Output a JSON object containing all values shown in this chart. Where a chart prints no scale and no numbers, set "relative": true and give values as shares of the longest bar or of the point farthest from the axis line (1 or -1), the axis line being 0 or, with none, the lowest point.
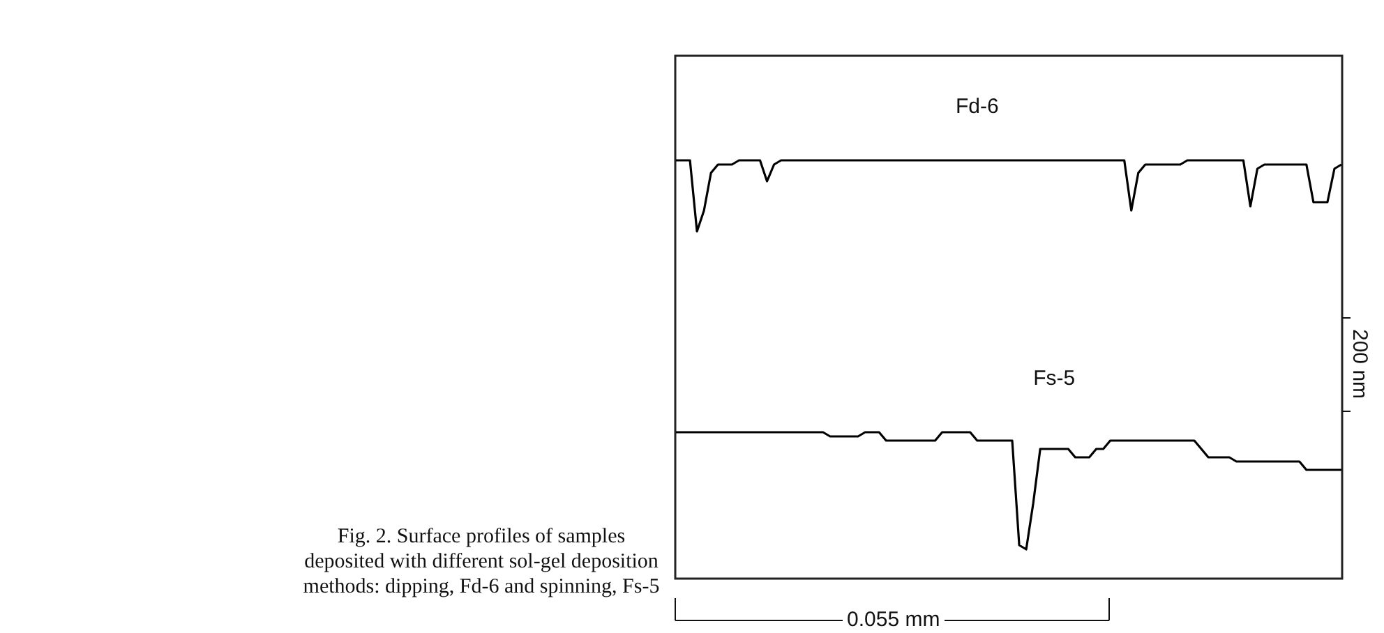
{
  "chart_data": {
    "type": "line",
    "relative": true,
    "categories": [
      null,
      null,
      null,
      null,
      null,
      null,
      null,
      null,
      null,
      null,
      null,
      null,
      null,
      null,
      null,
      null,
      null,
      null,
      null,
      null,
      null,
      null,
      null,
      null,
      null,
      null,
      null,
      null,
      null,
      null,
      null,
      null,
      null,
      null,
      null,
      null,
      null,
      null,
      null,
      null,
      null,
      null,
      null,
      null,
      null,
      null,
      null,
      null,
      null,
      null,
      null,
      null,
      null,
      null,
      null,
      null,
      null,
      null,
      null,
      null,
      null,
      null,
      null,
      null,
      null,
      null,
      null,
      null,
      null,
      null,
      null,
      null,
      null,
      null,
      null,
      null,
      null,
      null,
      null,
      null,
      null,
      null,
      null,
      null,
      null,
      null,
      null,
      null,
      null,
      null,
      null,
      null,
      null,
      null,
      null,
      null
    ],
    "series": [
      {
        "name": "Fd-6",
        "color": "#000000",
        "values": [
          1,
          1,
          1,
          0.83,
          0.88,
          0.97,
          0.99,
          0.99,
          0.99,
          1,
          1,
          1,
          1,
          0.95,
          0.99,
          1,
          1,
          1,
          1,
          1,
          1,
          1,
          1,
          1,
          1,
          1,
          1,
          1,
          1,
          1,
          1,
          1,
          1,
          1,
          1,
          1,
          1,
          1,
          1,
          1,
          1,
          1,
          1,
          1,
          1,
          1,
          1,
          1,
          1,
          1,
          1,
          1,
          1,
          1,
          1,
          1,
          1,
          1,
          1,
          1,
          1,
          1,
          1,
          1,
          1,
          0.88,
          0.97,
          0.99,
          0.99,
          0.99,
          0.99,
          0.99,
          0.99,
          1,
          1,
          1,
          1,
          1,
          1,
          1,
          1,
          1,
          0.89,
          0.98,
          0.99,
          0.99,
          0.99,
          0.99,
          0.99,
          0.99,
          0.99,
          0.9,
          0.9,
          0.9,
          0.98,
          0.99
        ]
      },
      {
        "name": "Fs-5",
        "color": "#000000",
        "values": [
          0.35,
          0.35,
          0.35,
          0.35,
          0.35,
          0.35,
          0.35,
          0.35,
          0.35,
          0.35,
          0.35,
          0.35,
          0.35,
          0.35,
          0.35,
          0.35,
          0.35,
          0.35,
          0.35,
          0.35,
          0.35,
          0.35,
          0.34,
          0.34,
          0.34,
          0.34,
          0.34,
          0.35,
          0.35,
          0.35,
          0.33,
          0.33,
          0.33,
          0.33,
          0.33,
          0.33,
          0.33,
          0.33,
          0.35,
          0.35,
          0.35,
          0.35,
          0.35,
          0.33,
          0.33,
          0.33,
          0.33,
          0.33,
          0.33,
          0.08,
          0.07,
          0.18,
          0.31,
          0.31,
          0.31,
          0.31,
          0.31,
          0.29,
          0.29,
          0.29,
          0.31,
          0.31,
          0.33,
          0.33,
          0.33,
          0.33,
          0.33,
          0.33,
          0.33,
          0.33,
          0.33,
          0.33,
          0.33,
          0.33,
          0.33,
          0.31,
          0.29,
          0.29,
          0.29,
          0.29,
          0.28,
          0.28,
          0.28,
          0.28,
          0.28,
          0.28,
          0.28,
          0.28,
          0.28,
          0.28,
          0.26,
          0.26,
          0.26,
          0.26,
          0.26,
          0.26
        ]
      }
    ],
    "line_style": "solid",
    "annotations": [
      "200 nm",
      "0.055 mm",
      "Fig. 2. Surface profiles of samples deposited with different sol-gel deposition methods: dipping, Fd-6 and spinning, Fs-5"
    ]
  }
}
